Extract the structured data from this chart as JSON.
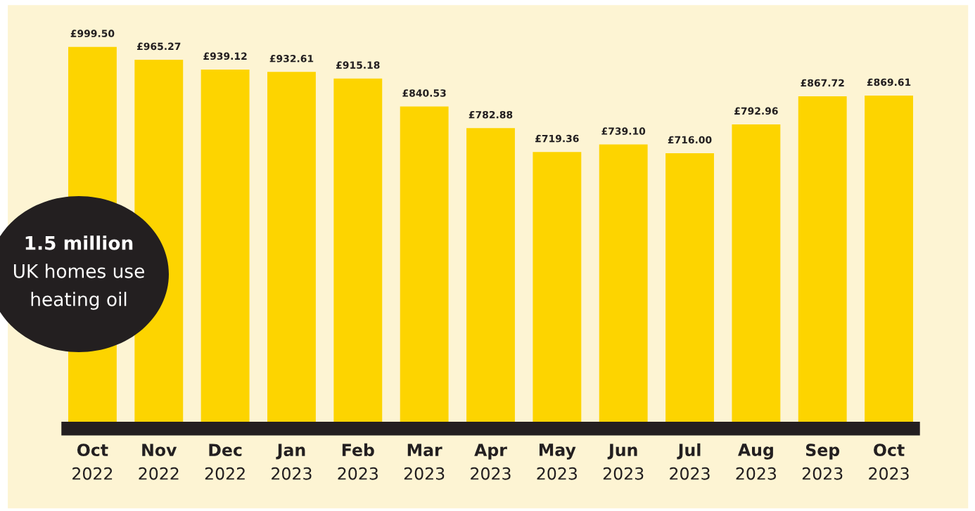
{
  "chart_data": {
    "type": "bar",
    "categories": [
      "Oct\n2022",
      "Nov\n2022",
      "Dec\n2022",
      "Jan\n2023",
      "Feb\n2023",
      "Mar\n2023",
      "Apr\n2023",
      "May\n2023",
      "Jun\n2023",
      "Jul\n2023",
      "Aug\n2023",
      "Sep\n2023",
      "Oct\n2023"
    ],
    "values": [
      999.5,
      965.27,
      939.12,
      932.61,
      915.18,
      840.53,
      782.88,
      719.36,
      739.1,
      716.0,
      792.96,
      867.72,
      869.61
    ],
    "value_labels": [
      "£999.50",
      "£965.27",
      "£939.12",
      "£932.61",
      "£915.18",
      "£840.53",
      "£782.88",
      "£719.36",
      "£739.10",
      "£716.00",
      "£792.96",
      "£867.72",
      "£869.61"
    ],
    "color": "#fdd400",
    "annotations": [
      "1.5 million\nUK homes use\nheating oil"
    ]
  }
}
